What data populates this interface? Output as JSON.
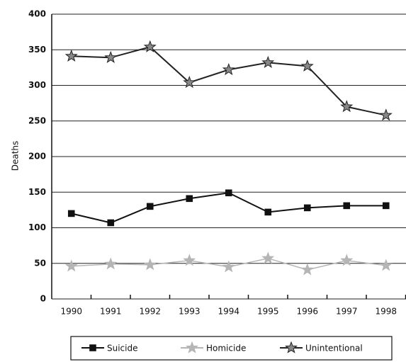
{
  "chart_data": {
    "type": "line",
    "y_label": "Deaths",
    "categories": [
      "1990",
      "1991",
      "1992",
      "1993",
      "1994",
      "1995",
      "1996",
      "1997",
      "1998"
    ],
    "series": [
      {
        "name": "Suicide",
        "color": "#111111",
        "marker": "square",
        "values": [
          120,
          107,
          130,
          141,
          149,
          122,
          128,
          131,
          131
        ]
      },
      {
        "name": "Homicide",
        "color": "#b5b5b5",
        "marker": "star",
        "values": [
          46,
          49,
          48,
          54,
          45,
          57,
          41,
          54,
          47
        ]
      },
      {
        "name": "Unintentional",
        "color": "#222222",
        "marker": "star",
        "values": [
          341,
          339,
          354,
          304,
          322,
          332,
          327,
          270,
          258
        ]
      }
    ],
    "ylim": [
      0,
      400
    ],
    "yticks": [
      0,
      50,
      100,
      150,
      200,
      250,
      300,
      350,
      400
    ],
    "grid": true,
    "legend": "bottom"
  }
}
